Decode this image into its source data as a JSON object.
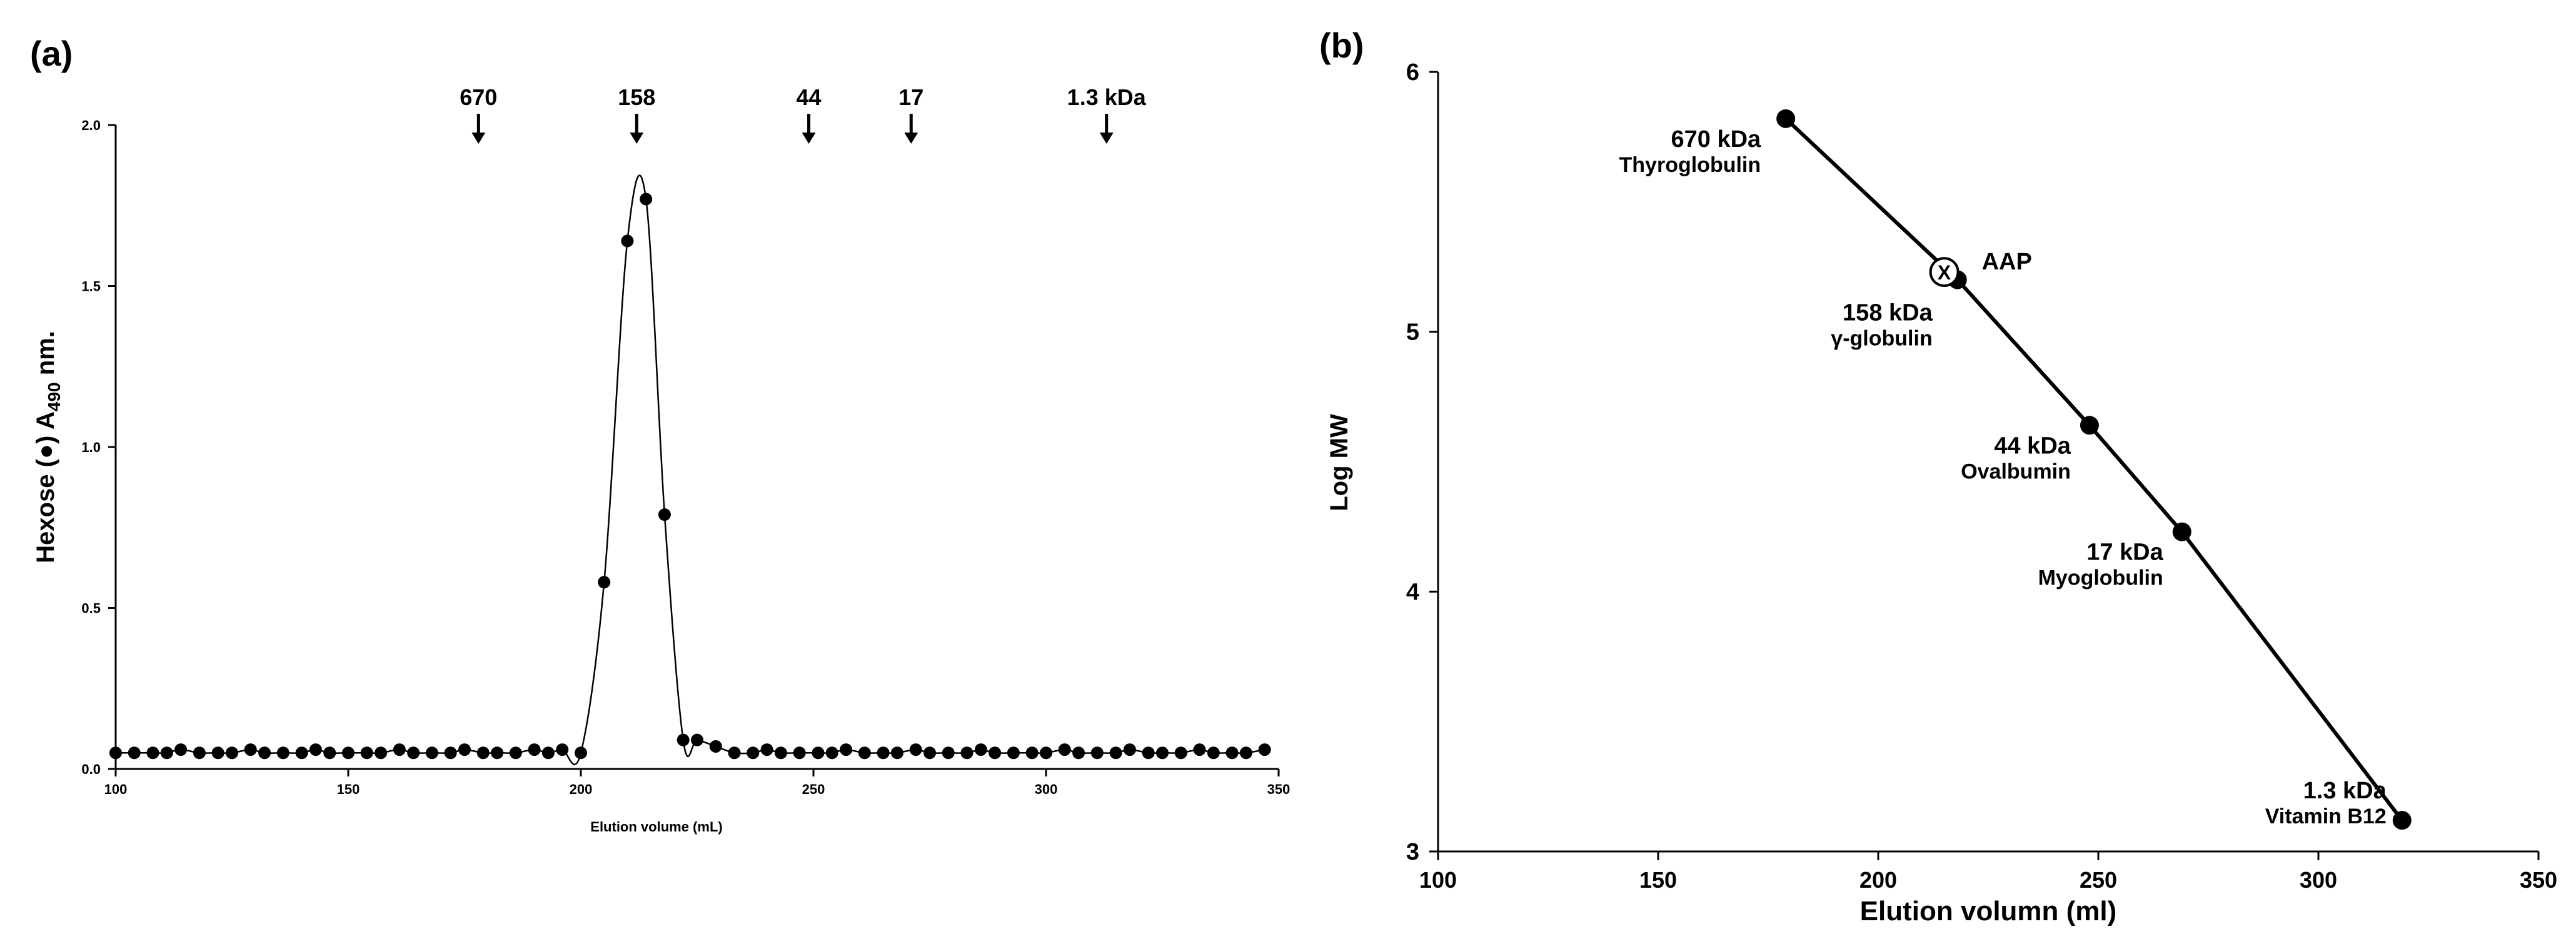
{
  "chart_data": [
    {
      "type": "scatter",
      "panel_label": "(a)",
      "title": "",
      "xlabel": "Elution volume (mL)",
      "ylabel": "Hexose (●) A490 nm.",
      "ylabel_parts": {
        "before": "Hexose (",
        "marker": "●",
        "middle": ") A",
        "sub": "490",
        "after": " nm."
      },
      "xlim": [
        100,
        350
      ],
      "ylim": [
        0,
        2.0
      ],
      "x_ticks": [
        "100",
        "150",
        "200",
        "250",
        "300",
        "350"
      ],
      "y_ticks": [
        "0.0",
        "0.5",
        "1.0",
        "1.5",
        "2.0"
      ],
      "grid": false,
      "legend": "none",
      "markers": [
        {
          "label": "670",
          "x": 178
        },
        {
          "label": "158",
          "x": 212
        },
        {
          "label": "44",
          "x": 249
        },
        {
          "label": "17",
          "x": 271
        },
        {
          "label": "1.3 kDa",
          "x": 313
        }
      ],
      "series": [
        {
          "x": [
            100,
            104,
            108,
            111,
            114,
            118,
            122,
            125,
            129,
            132,
            136,
            140,
            143,
            146,
            150,
            154,
            157,
            161,
            164,
            168,
            172,
            175,
            179,
            182,
            186,
            190,
            193,
            196,
            200,
            205,
            210,
            214,
            218,
            222,
            225,
            229,
            233,
            237,
            240,
            243,
            247,
            251,
            254,
            257,
            261,
            265,
            268,
            272,
            275,
            279,
            283,
            286,
            289,
            293,
            297,
            300,
            304,
            307,
            311,
            315,
            318,
            322,
            325,
            329,
            333,
            336,
            340,
            343,
            347
          ],
          "y": [
            0.05,
            0.05,
            0.05,
            0.05,
            0.06,
            0.05,
            0.05,
            0.05,
            0.06,
            0.05,
            0.05,
            0.05,
            0.06,
            0.05,
            0.05,
            0.05,
            0.05,
            0.06,
            0.05,
            0.05,
            0.05,
            0.06,
            0.05,
            0.05,
            0.05,
            0.06,
            0.05,
            0.06,
            0.05,
            0.58,
            1.64,
            1.77,
            0.79,
            0.09,
            0.09,
            0.07,
            0.05,
            0.05,
            0.06,
            0.05,
            0.05,
            0.05,
            0.05,
            0.06,
            0.05,
            0.05,
            0.05,
            0.06,
            0.05,
            0.05,
            0.05,
            0.06,
            0.05,
            0.05,
            0.05,
            0.05,
            0.06,
            0.05,
            0.05,
            0.05,
            0.06,
            0.05,
            0.05,
            0.05,
            0.06,
            0.05,
            0.05,
            0.05,
            0.06
          ]
        }
      ]
    },
    {
      "type": "line",
      "panel_label": "(b)",
      "title": "",
      "xlabel": "Elution volumn (ml)",
      "ylabel": "Log MW",
      "xlim": [
        100,
        350
      ],
      "ylim": [
        3,
        6
      ],
      "x_ticks": [
        "100",
        "150",
        "200",
        "250",
        "300",
        "350"
      ],
      "y_ticks": [
        "3",
        "4",
        "5",
        "6"
      ],
      "grid": false,
      "legend": "none",
      "series": [
        {
          "x": [
            179,
            218,
            248,
            269,
            319
          ],
          "y": [
            5.82,
            5.2,
            4.64,
            4.23,
            3.12
          ]
        }
      ],
      "point_labels": [
        {
          "line1": "670 kDa",
          "line2": "Thyroglobulin"
        },
        {
          "line1": "158 kDa",
          "line2": "γ-globulin"
        },
        {
          "line1": "44 kDa",
          "line2": "Ovalbumin"
        },
        {
          "line1": "17 kDa",
          "line2": "Myoglobulin"
        },
        {
          "line1": "1.3 kDa",
          "line2": "Vitamin B12"
        }
      ],
      "sample": {
        "name": "AAP",
        "marker": "X",
        "x": 215,
        "y": 5.23
      }
    }
  ]
}
